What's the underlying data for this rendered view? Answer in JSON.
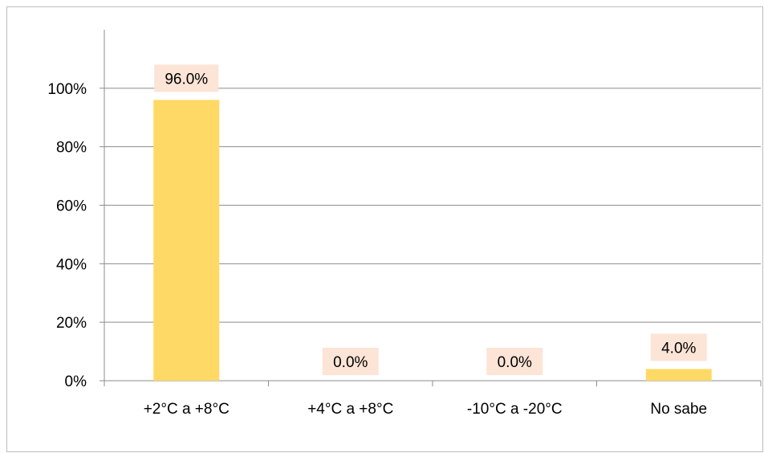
{
  "chart_data": {
    "type": "bar",
    "title": "",
    "xlabel": "",
    "ylabel": "",
    "categories": [
      "+2°C a +8°C",
      "+4°C a +8°C",
      "-10°C a -20°C",
      "No sabe"
    ],
    "values": [
      96.0,
      0.0,
      0.0,
      4.0
    ],
    "data_labels": [
      "96.0%",
      "0.0%",
      "0.0%",
      "4.0%"
    ],
    "ylim": [
      0,
      100
    ],
    "yticks": [
      0,
      20,
      40,
      60,
      80,
      100
    ],
    "ytick_labels": [
      "0%",
      "20%",
      "40%",
      "60%",
      "80%",
      "100%"
    ],
    "grid": true,
    "legend": "none",
    "colors": {
      "bar": "#FFD966",
      "data_label_background": "#FCE4D6",
      "gridline": "#8C8C8C",
      "axis": "#8C8C8C",
      "border": "#BDBDBD"
    }
  }
}
